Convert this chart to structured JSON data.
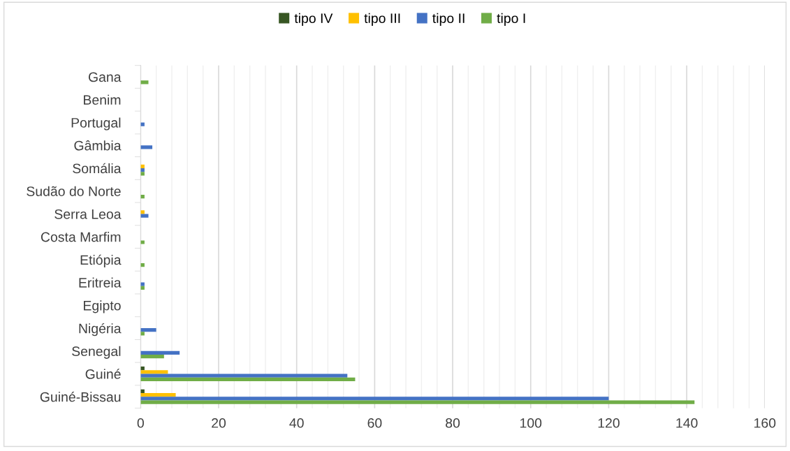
{
  "chart_data": {
    "type": "bar",
    "orientation": "horizontal",
    "categories": [
      "Gana",
      "Benim",
      "Portugal",
      "Gâmbia",
      "Somália",
      "Sudão do Norte",
      "Serra Leoa",
      "Costa Marfim",
      "Etiópia",
      "Eritreia",
      "Egipto",
      "Nigéria",
      "Senegal",
      "Guiné",
      "Guiné-Bissau"
    ],
    "series": [
      {
        "name": "tipo IV",
        "color": "#375623",
        "values": [
          0,
          0,
          0,
          0,
          0,
          0,
          0,
          0,
          0,
          0,
          0,
          0,
          0,
          1,
          1
        ]
      },
      {
        "name": "tipo III",
        "color": "#ffc000",
        "values": [
          0,
          0,
          0,
          0,
          1,
          0,
          1,
          0,
          0,
          0,
          0,
          0,
          0,
          7,
          9
        ]
      },
      {
        "name": "tipo II",
        "color": "#4472c4",
        "values": [
          0,
          0,
          1,
          3,
          1,
          0,
          2,
          0,
          0,
          1,
          0,
          4,
          10,
          53,
          120
        ]
      },
      {
        "name": "tipo I",
        "color": "#70ad47",
        "values": [
          2,
          0,
          0,
          0,
          1,
          1,
          0,
          1,
          1,
          1,
          0,
          1,
          6,
          55,
          142
        ]
      }
    ],
    "xlim": [
      0,
      160
    ],
    "xticks": [
      0,
      20,
      40,
      60,
      80,
      100,
      120,
      140,
      160
    ],
    "grid": "x",
    "legend": "top"
  }
}
